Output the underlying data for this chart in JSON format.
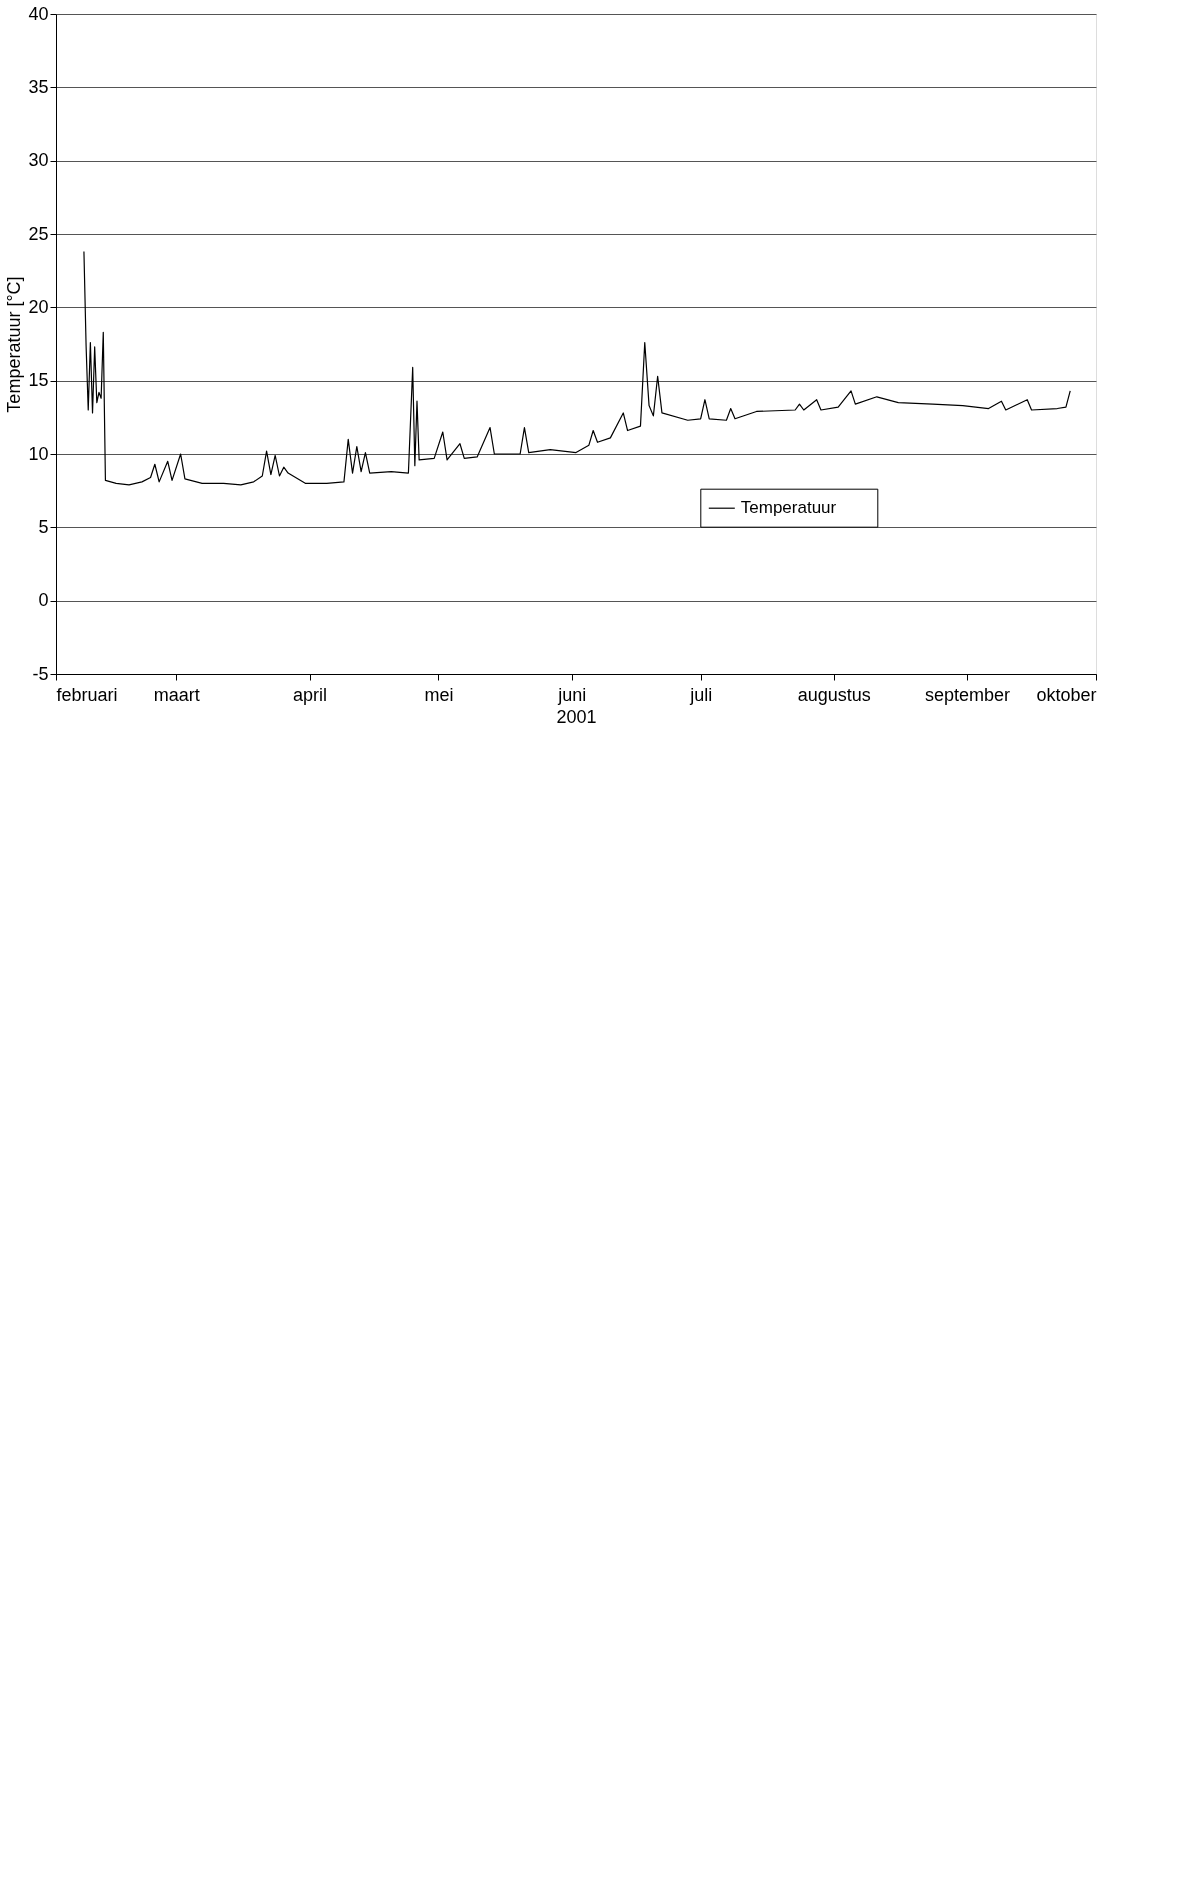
{
  "chart_data": {
    "type": "line",
    "xlabel": "2001",
    "ylabel": "Temperatuur [°C]",
    "x": [
      "2001-02-07T12:00",
      "2001-02-08T00:00",
      "2001-02-08T12:00",
      "2001-02-09T00:00",
      "2001-02-09T12:00",
      "2001-02-10T00:00",
      "2001-02-10T12:00",
      "2001-02-11T00:00",
      "2001-02-11T12:00",
      "2001-02-12T00:00",
      "2001-02-12T12:00",
      "2001-02-15",
      "2001-02-18",
      "2001-02-21",
      "2001-02-23",
      "2001-02-24",
      "2001-02-25",
      "2001-02-27",
      "2001-02-28",
      "2001-03-02",
      "2001-03-03",
      "2001-03-07",
      "2001-03-12",
      "2001-03-16",
      "2001-03-19",
      "2001-03-21",
      "2001-03-22",
      "2001-03-23",
      "2001-03-24",
      "2001-03-25",
      "2001-03-26",
      "2001-03-27",
      "2001-03-31",
      "2001-04-05",
      "2001-04-09",
      "2001-04-10",
      "2001-04-11",
      "2001-04-12",
      "2001-04-13",
      "2001-04-14",
      "2001-04-15",
      "2001-04-20",
      "2001-04-24",
      "2001-04-25T00:00",
      "2001-04-25T12:00",
      "2001-04-26T00:00",
      "2001-04-26T12:00",
      "2001-04-30",
      "2001-05-02",
      "2001-05-03",
      "2001-05-06",
      "2001-05-07",
      "2001-05-10",
      "2001-05-13",
      "2001-05-14",
      "2001-05-20",
      "2001-05-21",
      "2001-05-22",
      "2001-05-27",
      "2001-06-02",
      "2001-06-05",
      "2001-06-06",
      "2001-06-07",
      "2001-06-10",
      "2001-06-13",
      "2001-06-14",
      "2001-06-17",
      "2001-06-18",
      "2001-06-19",
      "2001-06-20",
      "2001-06-21",
      "2001-06-22",
      "2001-06-28",
      "2001-07-01",
      "2001-07-02",
      "2001-07-03",
      "2001-07-07",
      "2001-07-08",
      "2001-07-09",
      "2001-07-14",
      "2001-07-23",
      "2001-07-24",
      "2001-07-25",
      "2001-07-28",
      "2001-07-29",
      "2001-08-02",
      "2001-08-05",
      "2001-08-06",
      "2001-08-11",
      "2001-08-16",
      "2001-08-24",
      "2001-08-31",
      "2001-09-06",
      "2001-09-09",
      "2001-09-10",
      "2001-09-15",
      "2001-09-16",
      "2001-09-22",
      "2001-09-24",
      "2001-09-25"
    ],
    "series": [
      {
        "name": "Temperatuur",
        "color": "#000000",
        "values": [
          23.8,
          17.4,
          13.0,
          17.6,
          12.8,
          17.3,
          13.5,
          14.2,
          13.8,
          18.3,
          8.2,
          8.0,
          7.9,
          8.1,
          8.4,
          9.3,
          8.1,
          9.5,
          8.2,
          10.0,
          8.3,
          8.0,
          8.0,
          7.9,
          8.1,
          8.5,
          10.2,
          8.6,
          9.9,
          8.5,
          9.1,
          8.7,
          8.0,
          8.0,
          8.1,
          11.0,
          8.7,
          10.5,
          8.8,
          10.1,
          8.7,
          8.8,
          8.7,
          15.9,
          9.2,
          13.6,
          9.6,
          9.7,
          11.5,
          9.6,
          10.7,
          9.7,
          9.8,
          11.8,
          10.0,
          10.0,
          11.8,
          10.1,
          10.3,
          10.1,
          10.6,
          11.6,
          10.8,
          11.1,
          12.8,
          11.6,
          11.9,
          17.6,
          13.3,
          12.6,
          15.3,
          12.8,
          12.3,
          12.4,
          13.7,
          12.4,
          12.3,
          13.1,
          12.4,
          12.9,
          13.0,
          13.4,
          13.0,
          13.7,
          13.0,
          13.2,
          14.3,
          13.4,
          13.9,
          13.5,
          13.4,
          13.3,
          13.1,
          13.6,
          13.0,
          13.7,
          13.0,
          13.1,
          13.2,
          14.3
        ]
      }
    ],
    "xlim": [
      "2001-02-01",
      "2001-10-01"
    ],
    "xticks": [
      {
        "value": "2001-02-01",
        "label": "februari"
      },
      {
        "value": "2001-03-01",
        "label": "maart"
      },
      {
        "value": "2001-04-01",
        "label": "april"
      },
      {
        "value": "2001-05-01",
        "label": "mei"
      },
      {
        "value": "2001-06-01",
        "label": "juni"
      },
      {
        "value": "2001-07-01",
        "label": "juli"
      },
      {
        "value": "2001-08-01",
        "label": "augustus"
      },
      {
        "value": "2001-09-01",
        "label": "september"
      },
      {
        "value": "2001-10-01",
        "label": "oktober"
      }
    ],
    "ylim": [
      -5,
      40
    ],
    "yticks": [
      -5,
      0,
      5,
      10,
      15,
      20,
      25,
      30,
      35,
      40
    ],
    "grid": "y",
    "legend": "bottom"
  }
}
